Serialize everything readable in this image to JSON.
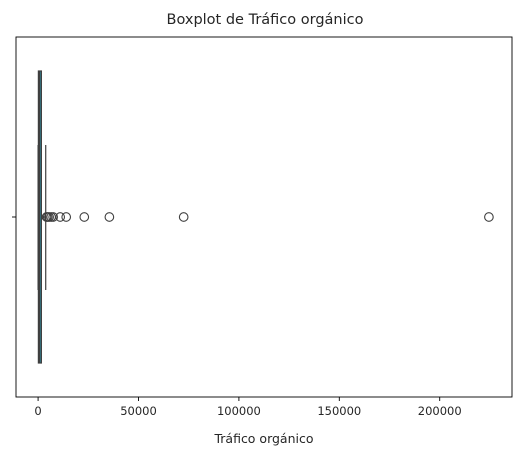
{
  "chart_data": {
    "type": "box",
    "orientation": "horizontal",
    "title": "Boxplot de Tráfico orgánico",
    "xlabel": "Tráfico orgánico",
    "ylabel": "",
    "xlim": [
      -11000,
      236000
    ],
    "x_ticks": [
      0,
      50000,
      100000,
      150000,
      200000
    ],
    "x_tick_labels": [
      "0",
      "50000",
      "100000",
      "150000",
      "200000"
    ],
    "grid": false,
    "box": {
      "q1": 150,
      "median": 700,
      "q3": 1600,
      "whisker_low": 0,
      "whisker_high": 3800,
      "outliers": [
        4200,
        4800,
        5500,
        6500,
        7500,
        11000,
        14000,
        23000,
        35500,
        72500,
        224500
      ],
      "color": "#2f7f8f"
    }
  }
}
